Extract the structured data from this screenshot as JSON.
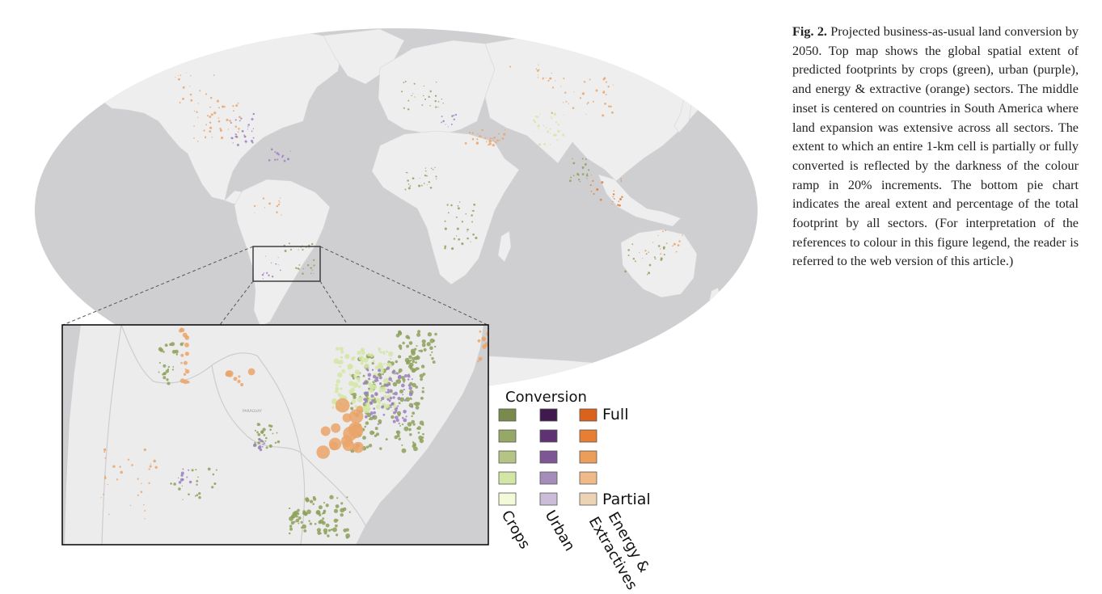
{
  "caption": {
    "label": "Fig. 2.",
    "text": "Projected business-as-usual land conversion by 2050. Top map shows the global spatial extent of predicted footprints by crops (green), urban (purple), and energy & extractive (orange) sectors. The middle inset is centered on countries in South America where land expansion was extensive across all sectors. The extent to which an entire 1-km cell is partially or fully con­verted is reflected by the darkness of the colour ramp in 20% increments. The bottom pie chart indicates the areal extent and per­centage of the total footprint by all sectors. (For interpretation of the references to colour in this figure legend, the reader is referred to the web version of this article.)"
  },
  "legend": {
    "title": "Conversion",
    "full_label": "Full",
    "partial_label": "Partial",
    "columns": [
      {
        "label": "Crops",
        "colors": [
          "#7a8a4c",
          "#95a866",
          "#b3c485",
          "#d4e6a5",
          "#f2fad8"
        ]
      },
      {
        "label": "Urban",
        "colors": [
          "#401a4f",
          "#5f3274",
          "#7d5793",
          "#a58dbb",
          "#cbbcd7"
        ]
      },
      {
        "label": "Energy &",
        "label2": "Extractives",
        "colors": [
          "#d9621c",
          "#e77e34",
          "#eb9d5a",
          "#efb988",
          "#ecd3b3"
        ]
      }
    ]
  },
  "map": {
    "ocean_color": "#cfcfd2",
    "land_color": "#eeeeee",
    "inset_land_color": "#ececec",
    "inset_neighbor_color": "#d8d8da",
    "inset_label": "PARAGUAY",
    "colors": {
      "crops": "#8ea15a",
      "crops_light": "#d4e6a5",
      "urban": "#9b7fc0",
      "energy": "#eaa46a",
      "energy_dark": "#e07a30"
    }
  }
}
